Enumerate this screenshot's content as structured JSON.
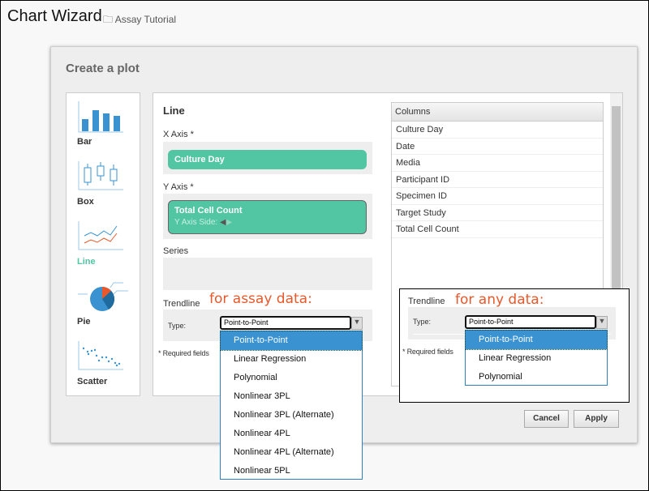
{
  "header": {
    "title": "Chart Wizard",
    "breadcrumb": "Assay Tutorial"
  },
  "dialog": {
    "title": "Create a plot",
    "chart_types": [
      {
        "label": "Bar"
      },
      {
        "label": "Box"
      },
      {
        "label": "Line",
        "selected": true
      },
      {
        "label": "Pie"
      },
      {
        "label": "Scatter"
      }
    ],
    "panel_title": "Line",
    "x_axis": {
      "label": "X Axis *",
      "value": "Culture Day"
    },
    "y_axis": {
      "label": "Y Axis *",
      "value": "Total Cell Count",
      "side_label": "Y Axis Side:"
    },
    "series": {
      "label": "Series"
    },
    "trendline": {
      "label": "Trendline",
      "type_label": "Type:",
      "selected": "Point-to-Point"
    },
    "required_note": "* Required fields",
    "columns": {
      "header": "Columns",
      "items": [
        "Culture Day",
        "Date",
        "Media",
        "Participant ID",
        "Specimen ID",
        "Target Study",
        "Total Cell Count"
      ]
    },
    "cancel": "Cancel",
    "apply": "Apply"
  },
  "assay_dropdown": {
    "note": "for assay data:",
    "options": [
      "Point-to-Point",
      "Linear Regression",
      "Polynomial",
      "Nonlinear 3PL",
      "Nonlinear 3PL (Alternate)",
      "Nonlinear 4PL",
      "Nonlinear 4PL (Alternate)",
      "Nonlinear 5PL"
    ]
  },
  "any_dropdown": {
    "note": "for any data:",
    "trendline_label": "Trendline",
    "type_label": "Type:",
    "selected": "Point-to-Point",
    "required_note": "* Required fields",
    "options": [
      "Point-to-Point",
      "Linear Regression",
      "Polynomial"
    ]
  },
  "colors": {
    "accent": "#52c6a2",
    "selection": "#3a93d0",
    "annotation": "#e8582a"
  }
}
